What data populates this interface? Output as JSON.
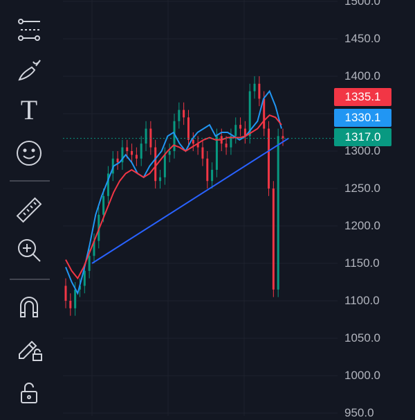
{
  "toolbar": {
    "tools": [
      {
        "name": "trend-lines-icon"
      },
      {
        "name": "brush-icon"
      },
      {
        "name": "text-tool-icon",
        "label": "T"
      },
      {
        "name": "emoji-icon"
      },
      {
        "name": "ruler-icon"
      },
      {
        "name": "zoom-in-icon"
      },
      {
        "name": "magnet-icon"
      },
      {
        "name": "lock-drawing-icon"
      },
      {
        "name": "lock-icon"
      }
    ]
  },
  "price_axis": {
    "ticks": [
      "1500.0",
      "1450.0",
      "1400.0",
      "1350.0",
      "1300.0",
      "1250.0",
      "1200.0",
      "1150.0",
      "1100.0",
      "1050.0",
      "1000.0",
      "950.0"
    ]
  },
  "price_labels": [
    {
      "name": "ma-slow-price-label",
      "value": "1335.1",
      "color": "#f23645"
    },
    {
      "name": "ma-fast-price-label",
      "value": "1330.1",
      "color": "#2196f3"
    },
    {
      "name": "last-price-label",
      "value": "1317.0",
      "color": "#089981"
    }
  ],
  "chart_data": {
    "type": "line",
    "y_axis": {
      "min": 950,
      "max": 1500,
      "labels": [
        "1500.0",
        "1450.0",
        "1400.0",
        "1350.0",
        "1300.0",
        "1250.0",
        "1200.0",
        "1150.0",
        "1100.0",
        "1050.0",
        "1000.0",
        "950.0"
      ]
    },
    "last_price": 1317.0,
    "series": [
      {
        "style": "candlestick",
        "color_up": "#089981",
        "color_down": "#f23645",
        "close": [
          1100,
          1090,
          1115,
          1120,
          1140,
          1160,
          1180,
          1215,
          1240,
          1270,
          1290,
          1285,
          1305,
          1300,
          1295,
          1290,
          1310,
          1330,
          1305,
          1260,
          1265,
          1295,
          1300,
          1340,
          1355,
          1345,
          1315,
          1310,
          1305,
          1290,
          1260,
          1275,
          1320,
          1310,
          1305,
          1320,
          1335,
          1330,
          1320,
          1380,
          1390,
          1370,
          1330,
          1250,
          1115,
          1320,
          1317
        ]
      },
      {
        "color": "#2196f3",
        "values": [
          1145,
          1125,
          1110,
          1140,
          1175,
          1215,
          1240,
          1260,
          1280,
          1285,
          1295,
          1285,
          1270,
          1265,
          1280,
          1290,
          1300,
          1320,
          1325,
          1310,
          1300,
          1315,
          1325,
          1330,
          1335,
          1320,
          1325,
          1325,
          1320,
          1315,
          1320,
          1330,
          1340,
          1370,
          1380,
          1360,
          1330.1
        ]
      },
      {
        "color": "#f23645",
        "values": [
          1155,
          1140,
          1130,
          1145,
          1165,
          1185,
          1205,
          1225,
          1245,
          1260,
          1270,
          1275,
          1270,
          1265,
          1270,
          1280,
          1290,
          1300,
          1308,
          1305,
          1300,
          1305,
          1310,
          1315,
          1318,
          1315,
          1315,
          1318,
          1318,
          1318,
          1320,
          1325,
          1330,
          1340,
          1348,
          1345,
          1335.1
        ]
      },
      {
        "color": "#2962ff",
        "values": [
          1150,
          1317
        ]
      }
    ]
  }
}
